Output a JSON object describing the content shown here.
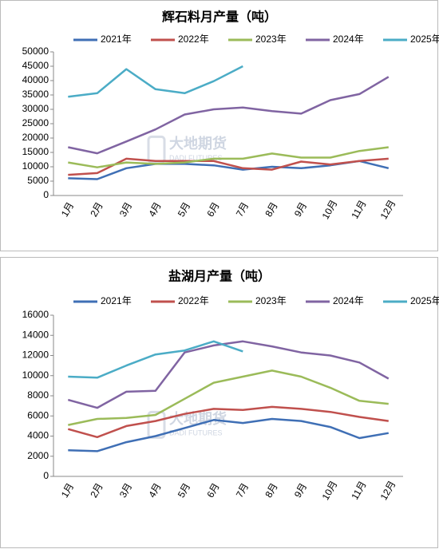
{
  "chart_data": [
    {
      "type": "line",
      "title": "辉石料月产量（吨）",
      "watermark": "大地期货",
      "watermark_sub": "DADI FUTURES",
      "categories": [
        "1月",
        "2月",
        "3月",
        "4月",
        "5月",
        "6月",
        "7月",
        "8月",
        "9月",
        "10月",
        "11月",
        "12月"
      ],
      "series": [
        {
          "name": "2021年",
          "color": "#3f6fb5",
          "values": [
            6000,
            5700,
            9500,
            11000,
            11000,
            10500,
            9000,
            10000,
            9500,
            10500,
            12000,
            9500
          ]
        },
        {
          "name": "2022年",
          "color": "#c0504d",
          "values": [
            7200,
            7800,
            12800,
            12000,
            12000,
            12000,
            9500,
            9000,
            11800,
            10800,
            12000,
            12800
          ]
        },
        {
          "name": "2023年",
          "color": "#9bbb59",
          "values": [
            11500,
            9800,
            11500,
            11000,
            11500,
            12800,
            12800,
            14600,
            13200,
            13200,
            15500,
            16800
          ]
        },
        {
          "name": "2024年",
          "color": "#8064a2",
          "values": [
            16800,
            14700,
            18800,
            23000,
            28200,
            30000,
            30600,
            29400,
            28500,
            33200,
            35300,
            41300
          ]
        },
        {
          "name": "2025年",
          "color": "#4bacc6",
          "values": [
            34400,
            35600,
            44000,
            37000,
            35600,
            39800,
            45000,
            null,
            null,
            null,
            null,
            null
          ]
        }
      ],
      "ylim": [
        0,
        50000
      ],
      "yticks": [
        0,
        5000,
        10000,
        15000,
        20000,
        25000,
        30000,
        35000,
        40000,
        45000,
        50000
      ]
    },
    {
      "type": "line",
      "title": "盐湖月产量（吨）",
      "watermark": "大地期货",
      "watermark_sub": "DADI FUTURES",
      "categories": [
        "1月",
        "2月",
        "3月",
        "4月",
        "5月",
        "6月",
        "7月",
        "8月",
        "9月",
        "10月",
        "11月",
        "12月"
      ],
      "series": [
        {
          "name": "2021年",
          "color": "#3f6fb5",
          "values": [
            2600,
            2500,
            3400,
            4000,
            4800,
            5600,
            5300,
            5700,
            5500,
            4900,
            3800,
            4300
          ]
        },
        {
          "name": "2022年",
          "color": "#c0504d",
          "values": [
            4700,
            3900,
            5000,
            5500,
            6200,
            6700,
            6600,
            6900,
            6700,
            6400,
            5900,
            5500
          ]
        },
        {
          "name": "2023年",
          "color": "#9bbb59",
          "values": [
            5100,
            5700,
            5800,
            6100,
            7700,
            9300,
            9900,
            10500,
            9900,
            8800,
            7500,
            7200
          ]
        },
        {
          "name": "2024年",
          "color": "#8064a2",
          "values": [
            7600,
            6800,
            8400,
            8500,
            12300,
            13000,
            13400,
            12900,
            12300,
            12000,
            11300,
            9700
          ]
        },
        {
          "name": "2025年",
          "color": "#4bacc6",
          "values": [
            9900,
            9800,
            11000,
            12100,
            12500,
            13400,
            12400,
            null,
            null,
            null,
            null,
            null
          ]
        }
      ],
      "ylim": [
        0,
        16000
      ],
      "yticks": [
        0,
        2000,
        4000,
        6000,
        8000,
        10000,
        12000,
        14000,
        16000
      ]
    }
  ]
}
